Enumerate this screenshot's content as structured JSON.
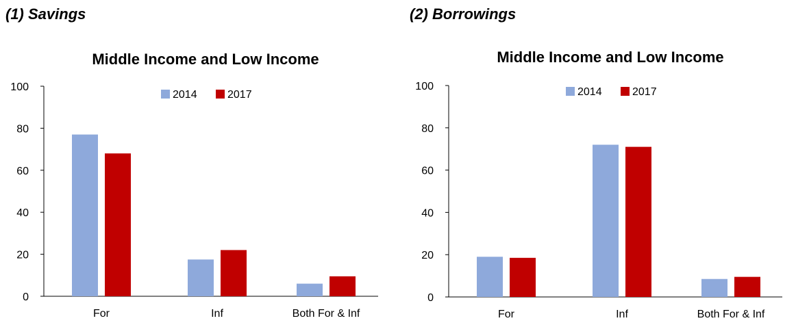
{
  "panels": [
    {
      "title": "(1) Savings"
    },
    {
      "title": "(2) Borrowings"
    }
  ],
  "colors": {
    "2014": "#8EA9DB",
    "2017": "#C00000"
  },
  "chart_data": [
    {
      "type": "bar",
      "title": "Middle Income and Low Income",
      "categories": [
        "For",
        "Inf",
        "Both For & Inf"
      ],
      "series": [
        {
          "name": "2014",
          "values": [
            77,
            17.5,
            6
          ]
        },
        {
          "name": "2017",
          "values": [
            68,
            22,
            9.5
          ]
        }
      ],
      "ylim": [
        0,
        100
      ],
      "yticks": [
        0,
        20,
        40,
        60,
        80,
        100
      ],
      "legend": "top-center",
      "grid": false
    },
    {
      "type": "bar",
      "title": "Middle Income and Low Income",
      "categories": [
        "For",
        "Inf",
        "Both For & Inf"
      ],
      "series": [
        {
          "name": "2014",
          "values": [
            19,
            72,
            8.5
          ]
        },
        {
          "name": "2017",
          "values": [
            18.5,
            71,
            9.5
          ]
        }
      ],
      "ylim": [
        0,
        100
      ],
      "yticks": [
        0,
        20,
        40,
        60,
        80,
        100
      ],
      "legend": "top-center",
      "grid": false
    }
  ]
}
